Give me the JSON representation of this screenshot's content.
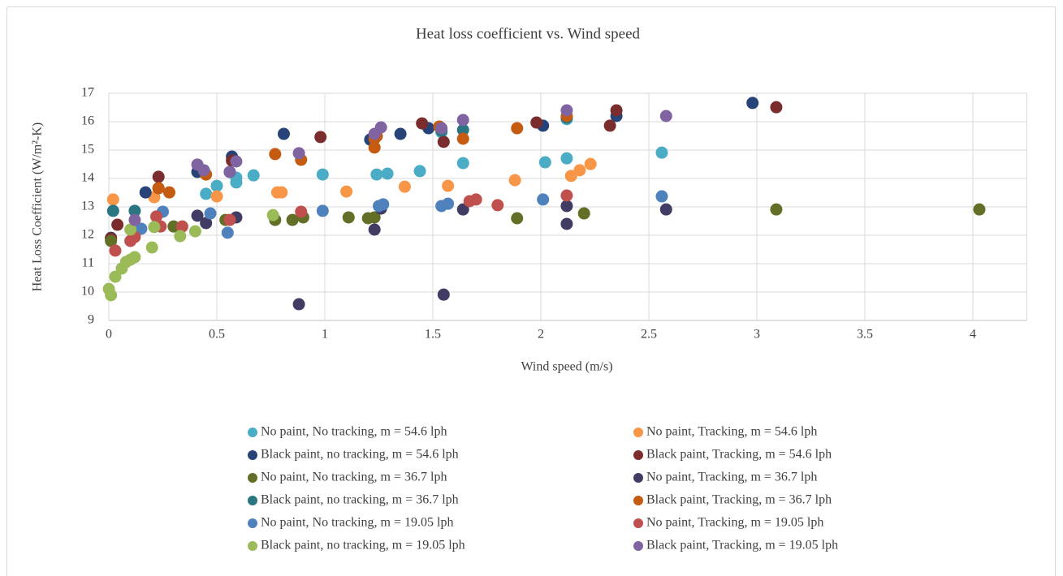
{
  "chart_data": {
    "type": "scatter",
    "title": "Heat loss coefficient vs. Wind speed",
    "x_label": "Wind speed (m/s)",
    "y_label": "Heat Loss Coefficient (W/m²-K)",
    "xlim": [
      0,
      4.25
    ],
    "xticks": [
      0,
      0.5,
      1,
      1.5,
      2,
      2.5,
      3,
      3.5,
      4
    ],
    "ylim": [
      9,
      17
    ],
    "yticks": [
      9,
      10,
      11,
      12,
      13,
      14,
      15,
      16,
      17
    ],
    "grid": true,
    "legend": "bottom",
    "series": [
      {
        "name": "No paint, No tracking, m = 54.6 lph",
        "color": "#4bacc6",
        "x": [
          0.45,
          0.5,
          0.59,
          0.59,
          0.67,
          0.99,
          1.24,
          1.29,
          1.44,
          1.64,
          1.54,
          2.02,
          2.12,
          2.56,
          2.12
        ],
        "values": [
          13.46,
          13.74,
          13.86,
          14.03,
          14.11,
          14.14,
          14.14,
          14.17,
          14.26,
          14.54,
          15.63,
          14.57,
          14.71,
          14.91,
          16.09
        ]
      },
      {
        "name": "No paint, Tracking, m = 54.6 lph",
        "color": "#f79646",
        "x": [
          0.02,
          0.21,
          0.5,
          0.78,
          0.8,
          1.1,
          1.37,
          1.57,
          1.88,
          2.14,
          2.18,
          2.23
        ],
        "values": [
          13.26,
          13.34,
          13.37,
          13.51,
          13.51,
          13.54,
          13.71,
          13.74,
          13.94,
          14.09,
          14.29,
          14.51
        ]
      },
      {
        "name": "Black paint, no tracking, m = 54.6 lph",
        "color": "#264478",
        "x": [
          0.01,
          0.17,
          0.41,
          0.57,
          0.81,
          1.21,
          1.24,
          1.35,
          1.48,
          2.01,
          2.35,
          2.98
        ],
        "values": [
          11.91,
          13.51,
          14.23,
          14.77,
          15.57,
          15.37,
          15.49,
          15.57,
          15.77,
          15.86,
          16.2,
          16.66
        ]
      },
      {
        "name": "Black paint, Tracking, m = 54.6 lph",
        "color": "#7b2c2c",
        "x": [
          0.01,
          0.04,
          0.23,
          0.23,
          0.57,
          0.98,
          1.23,
          1.45,
          1.55,
          1.98,
          2.32,
          2.35,
          3.09
        ],
        "values": [
          11.89,
          12.37,
          14.06,
          13.66,
          14.63,
          15.46,
          15.49,
          15.94,
          15.29,
          15.97,
          15.86,
          16.4,
          16.51
        ]
      },
      {
        "name": "No paint, No tracking, m = 36.7 lph",
        "color": "#636e26",
        "x": [
          0.01,
          0.3,
          0.54,
          0.77,
          0.85,
          0.9,
          1.11,
          1.2,
          1.23,
          1.89,
          2.2,
          3.09,
          4.03
        ],
        "values": [
          11.8,
          12.31,
          12.54,
          12.54,
          12.54,
          12.63,
          12.63,
          12.6,
          12.63,
          12.6,
          12.77,
          12.91,
          12.91
        ]
      },
      {
        "name": "No paint, Tracking, m = 36.7 lph",
        "color": "#403c63",
        "x": [
          0.41,
          0.45,
          0.59,
          0.88,
          1.23,
          1.26,
          1.55,
          1.64,
          2.12,
          2.12,
          2.58
        ],
        "values": [
          12.69,
          12.43,
          12.63,
          9.57,
          12.2,
          12.94,
          9.91,
          12.91,
          13.03,
          12.4,
          12.91
        ]
      },
      {
        "name": "Black paint, no tracking, m = 36.7 lph",
        "color": "#2a7582",
        "x": [
          0.02,
          0.12,
          0.56,
          1.64,
          1.54,
          2.12
        ],
        "values": [
          12.86,
          12.86,
          14.23,
          15.71,
          15.69,
          16.14
        ]
      },
      {
        "name": "Black paint, Tracking, m = 36.7 lph",
        "color": "#c55a11",
        "x": [
          0.23,
          0.28,
          0.45,
          0.77,
          0.89,
          1.23,
          1.24,
          1.23,
          1.53,
          1.64,
          1.89,
          2.12
        ],
        "values": [
          13.66,
          13.51,
          14.14,
          14.86,
          14.66,
          15.4,
          15.49,
          15.09,
          15.83,
          15.4,
          15.77,
          16.2
        ]
      },
      {
        "name": "No paint, No tracking, m = 19.05 lph",
        "color": "#4f81bd",
        "x": [
          0.15,
          0.25,
          0.47,
          0.55,
          0.99,
          1.25,
          1.27,
          1.54,
          1.57,
          2.01,
          2.56
        ],
        "values": [
          12.23,
          12.83,
          12.77,
          12.09,
          12.86,
          13.03,
          13.09,
          13.03,
          13.11,
          13.26,
          13.37
        ]
      },
      {
        "name": "No paint, Tracking, m = 19.05 lph",
        "color": "#c0504d",
        "x": [
          0.03,
          0.1,
          0.12,
          0.22,
          0.24,
          0.34,
          0.56,
          0.89,
          1.67,
          1.7,
          1.8,
          2.12
        ],
        "values": [
          11.46,
          11.8,
          11.94,
          12.66,
          12.31,
          12.31,
          12.54,
          12.83,
          13.2,
          13.26,
          13.06,
          13.4
        ]
      },
      {
        "name": "Black paint, no tracking, m = 19.05 lph",
        "color": "#9bbb59",
        "x": [
          0,
          0.01,
          0.03,
          0.06,
          0.08,
          0.1,
          0.12,
          0.2,
          0.21,
          0.1,
          0.33,
          0.4,
          0.76
        ],
        "values": [
          10.11,
          9.89,
          10.54,
          10.83,
          11.06,
          11.14,
          11.23,
          11.57,
          12.29,
          12.2,
          11.97,
          12.14,
          12.71
        ]
      },
      {
        "name": "Black paint, Tracking, m = 19.05 lph",
        "color": "#8064a2",
        "x": [
          0.12,
          0.41,
          0.44,
          0.56,
          0.59,
          0.88,
          1.23,
          1.26,
          1.54,
          1.64,
          2.12,
          2.58
        ],
        "values": [
          12.54,
          14.49,
          14.29,
          14.23,
          14.6,
          14.89,
          15.57,
          15.8,
          15.77,
          16.06,
          16.4,
          16.2
        ]
      }
    ]
  }
}
